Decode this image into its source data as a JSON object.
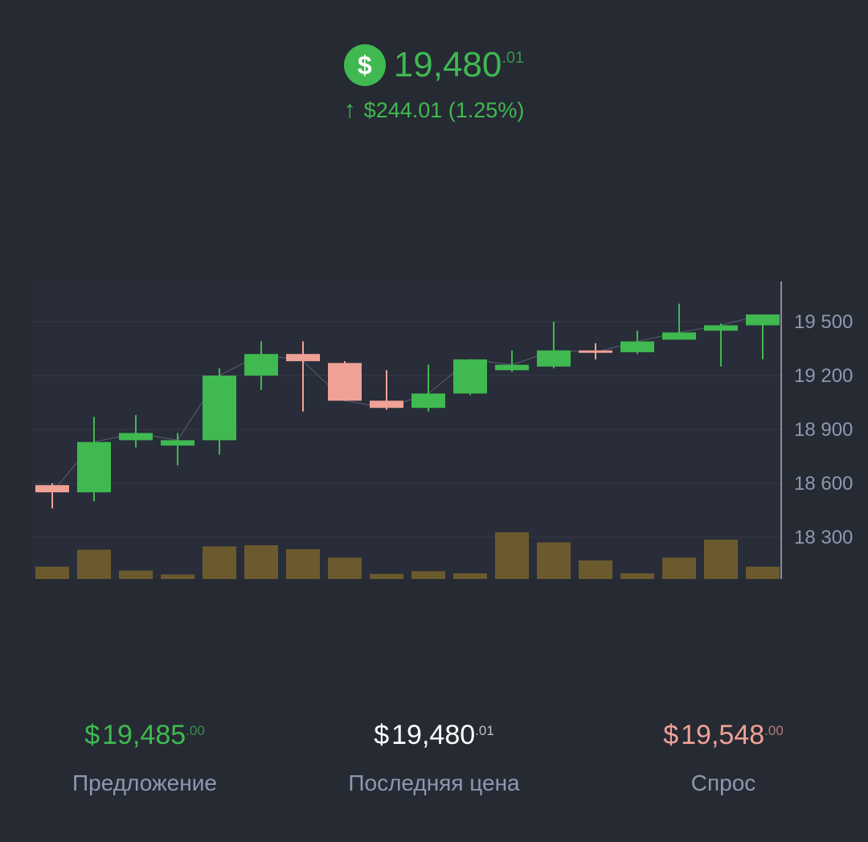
{
  "header": {
    "currency_icon": "dollar-coin-icon",
    "price_whole": "19,480",
    "price_cents": ".01",
    "change_arrow": "↑",
    "change_text": "$244.01 (1.25%)"
  },
  "stats": {
    "bid": {
      "currency": "$",
      "whole": "19,485",
      "cents": ".00",
      "label": "Предложение"
    },
    "last": {
      "currency": "$",
      "whole": "19,480",
      "cents": ".01",
      "label": "Последняя цена"
    },
    "ask": {
      "currency": "$",
      "whole": "19,548",
      "cents": ".00",
      "label": "Спрос"
    }
  },
  "colors": {
    "background": "#262a33",
    "up": "#3fb950",
    "down": "#f0a196",
    "volume": "#6b5a2e",
    "label": "#8f98b1"
  },
  "chart_data": {
    "type": "bar",
    "subtype": "candlestick-with-volume",
    "y_ticks": [
      "19 500",
      "19 200",
      "18 900",
      "18 600",
      "18 300"
    ],
    "ylim": [
      18150,
      19600
    ],
    "grid": true,
    "candles": [
      {
        "open": 18590,
        "high": 18600,
        "low": 18460,
        "close": 18550
      },
      {
        "open": 18550,
        "high": 18970,
        "low": 18500,
        "close": 18830
      },
      {
        "open": 18840,
        "high": 18980,
        "low": 18800,
        "close": 18880
      },
      {
        "open": 18810,
        "high": 18880,
        "low": 18700,
        "close": 18840
      },
      {
        "open": 18840,
        "high": 19240,
        "low": 18760,
        "close": 19200
      },
      {
        "open": 19200,
        "high": 19390,
        "low": 19120,
        "close": 19320
      },
      {
        "open": 19320,
        "high": 19390,
        "low": 19000,
        "close": 19280
      },
      {
        "open": 19270,
        "high": 19280,
        "low": 19060,
        "close": 19060
      },
      {
        "open": 19060,
        "high": 19230,
        "low": 19010,
        "close": 19020
      },
      {
        "open": 19020,
        "high": 19260,
        "low": 19000,
        "close": 19100
      },
      {
        "open": 19100,
        "high": 19290,
        "low": 19090,
        "close": 19290
      },
      {
        "open": 19230,
        "high": 19340,
        "low": 19220,
        "close": 19260
      },
      {
        "open": 19250,
        "high": 19500,
        "low": 19240,
        "close": 19340
      },
      {
        "open": 19340,
        "high": 19380,
        "low": 19290,
        "close": 19330
      },
      {
        "open": 19330,
        "high": 19450,
        "low": 19320,
        "close": 19390
      },
      {
        "open": 19400,
        "high": 19600,
        "low": 19400,
        "close": 19440
      },
      {
        "open": 19450,
        "high": 19490,
        "low": 19250,
        "close": 19480
      },
      {
        "open": 19480,
        "high": 19540,
        "low": 19290,
        "close": 19540
      }
    ],
    "volume": [
      0.22,
      0.52,
      0.15,
      0.08,
      0.58,
      0.6,
      0.53,
      0.38,
      0.09,
      0.14,
      0.1,
      0.83,
      0.65,
      0.33,
      0.1,
      0.38,
      0.7,
      0.22
    ]
  }
}
